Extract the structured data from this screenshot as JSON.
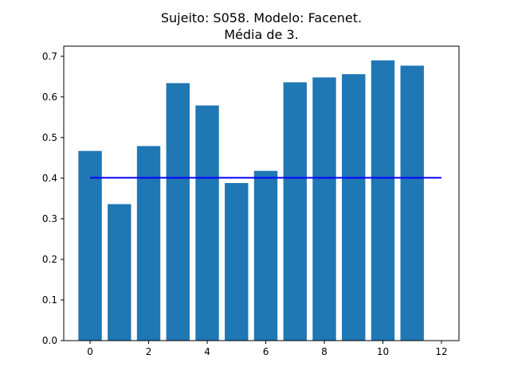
{
  "chart_data": {
    "type": "bar",
    "title_line1": "Sujeito: S058. Modelo: Facenet.",
    "title_line2": "Média de 3.",
    "xlabel": "",
    "ylabel": "",
    "categories": [
      0,
      1,
      2,
      3,
      4,
      5,
      6,
      7,
      8,
      9,
      10,
      11
    ],
    "values": [
      0.467,
      0.336,
      0.479,
      0.634,
      0.579,
      0.388,
      0.418,
      0.636,
      0.648,
      0.656,
      0.69,
      0.677
    ],
    "bar_color": "#1f77b4",
    "reference_line": {
      "value": 0.401,
      "x_start": 0,
      "x_end": 12,
      "color": "#0000ff"
    },
    "xlim": [
      -0.9,
      12.6
    ],
    "ylim": [
      0.0,
      0.725
    ],
    "x_ticks": [
      "0",
      "2",
      "4",
      "6",
      "8",
      "10",
      "12"
    ],
    "y_ticks": [
      "0.0",
      "0.1",
      "0.2",
      "0.3",
      "0.4",
      "0.5",
      "0.6",
      "0.7"
    ],
    "grid": false,
    "legend": false
  }
}
